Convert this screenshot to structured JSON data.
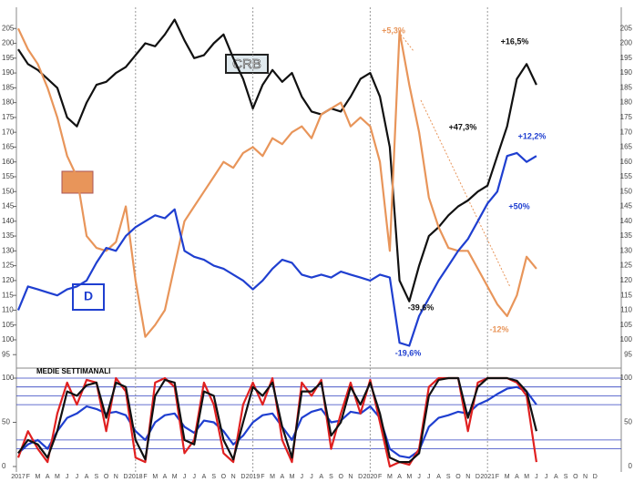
{
  "chart_data": [
    {
      "type": "line",
      "ylim": [
        92,
        210
      ],
      "yticks": [
        95,
        100,
        105,
        110,
        115,
        120,
        125,
        130,
        135,
        140,
        145,
        150,
        155,
        160,
        165,
        170,
        175,
        180,
        185,
        190,
        195,
        200,
        205
      ],
      "series": [
        {
          "name": "CRB",
          "color": "#111111",
          "values": [
            198,
            193,
            191,
            188,
            185,
            175,
            172,
            180,
            186,
            187,
            190,
            192,
            196,
            200,
            199,
            203,
            208,
            201,
            195,
            196,
            200,
            203,
            195,
            188,
            178,
            186,
            191,
            187,
            190,
            182,
            177,
            176,
            178,
            177,
            182,
            188,
            190,
            182,
            165,
            120,
            113,
            125,
            135,
            138,
            142,
            145,
            147,
            150,
            152,
            162,
            172,
            188,
            193,
            186,
            null,
            null,
            null,
            null,
            null,
            null
          ]
        },
        {
          "color": "#e8955a",
          "values": [
            205,
            198,
            193,
            185,
            175,
            162,
            155,
            135,
            131,
            130,
            133,
            145,
            120,
            101,
            105,
            110,
            125,
            140,
            145,
            150,
            155,
            160,
            158,
            163,
            165,
            162,
            168,
            166,
            170,
            172,
            168,
            176,
            178,
            180,
            172,
            175,
            172,
            160,
            130,
            204,
            186,
            170,
            148,
            138,
            131,
            130,
            130,
            124,
            118,
            112,
            108,
            115,
            128,
            124,
            null,
            null,
            null,
            null,
            null,
            null
          ]
        },
        {
          "color": "#1f3fd0",
          "values": [
            110,
            118,
            117,
            116,
            115,
            117,
            118,
            120,
            126,
            131,
            130,
            135,
            138,
            140,
            142,
            141,
            144,
            130,
            128,
            127,
            125,
            124,
            122,
            120,
            117,
            120,
            124,
            127,
            126,
            122,
            121,
            122,
            121,
            123,
            122,
            121,
            120,
            122,
            121,
            99,
            98,
            108,
            114,
            120,
            125,
            130,
            134,
            140,
            146,
            150,
            162,
            163,
            160,
            162,
            null,
            null,
            null,
            null,
            null,
            null
          ]
        }
      ],
      "annotations": [
        {
          "text": "+5,3%",
          "color": "#e8955a"
        },
        {
          "text": "+16,5%",
          "color": "#111111"
        },
        {
          "text": "+47,3%",
          "color": "#111111"
        },
        {
          "text": "+12,2%",
          "color": "#1f3fd0"
        },
        {
          "text": "+50%",
          "color": "#1f3fd0"
        },
        {
          "text": "-39,6%",
          "color": "#111111"
        },
        {
          "text": "-19,6%",
          "color": "#1f3fd0"
        },
        {
          "text": "-12%",
          "color": "#e8955a"
        },
        {
          "text": "D",
          "color": "#1f3fd0"
        }
      ]
    },
    {
      "type": "line",
      "title": "MEDIE SETTIMANALI",
      "categories": [
        "2017",
        "F",
        "M",
        "A",
        "M",
        "J",
        "J",
        "A",
        "S",
        "O",
        "N",
        "D",
        "2018",
        "F",
        "M",
        "A",
        "M",
        "J",
        "J",
        "A",
        "S",
        "O",
        "N",
        "D",
        "2019",
        "F",
        "M",
        "A",
        "M",
        "J",
        "J",
        "A",
        "S",
        "O",
        "N",
        "D",
        "2020",
        "F",
        "M",
        "A",
        "M",
        "J",
        "J",
        "A",
        "S",
        "O",
        "N",
        "D",
        "2021",
        "F",
        "M",
        "A",
        "M",
        "J",
        "J",
        "A",
        "S",
        "O",
        "N",
        "D"
      ],
      "ylim": [
        0,
        100
      ],
      "yticks": [
        0,
        50,
        100
      ],
      "levels": [
        20,
        30,
        70,
        80,
        90,
        100
      ],
      "series": [
        {
          "color": "#1f3fd0",
          "values": [
            15,
            25,
            30,
            20,
            40,
            55,
            60,
            68,
            65,
            60,
            62,
            58,
            40,
            30,
            50,
            58,
            60,
            45,
            38,
            52,
            50,
            40,
            25,
            35,
            50,
            58,
            60,
            45,
            30,
            55,
            62,
            65,
            50,
            52,
            62,
            60,
            68,
            55,
            20,
            12,
            10,
            18,
            45,
            55,
            58,
            62,
            60,
            70,
            75,
            82,
            88,
            90,
            85,
            70,
            null,
            null,
            null,
            null,
            null,
            null
          ]
        },
        {
          "color": "#e02020",
          "values": [
            10,
            40,
            20,
            5,
            60,
            95,
            70,
            98,
            95,
            40,
            100,
            85,
            10,
            5,
            95,
            100,
            90,
            15,
            30,
            95,
            70,
            15,
            5,
            70,
            95,
            70,
            100,
            30,
            5,
            95,
            80,
            98,
            20,
            60,
            95,
            60,
            98,
            50,
            0,
            5,
            2,
            20,
            90,
            100,
            100,
            100,
            40,
            95,
            100,
            100,
            100,
            95,
            80,
            5,
            null,
            null,
            null,
            null,
            null,
            null
          ]
        },
        {
          "color": "#111111",
          "values": [
            15,
            30,
            25,
            10,
            40,
            85,
            80,
            92,
            95,
            55,
            95,
            90,
            30,
            8,
            80,
            98,
            95,
            30,
            25,
            85,
            80,
            30,
            8,
            50,
            90,
            80,
            95,
            45,
            10,
            85,
            85,
            95,
            35,
            50,
            90,
            70,
            95,
            60,
            10,
            5,
            5,
            15,
            80,
            98,
            100,
            100,
            55,
            90,
            100,
            100,
            100,
            97,
            85,
            40,
            null,
            null,
            null,
            null,
            null,
            null
          ]
        }
      ]
    }
  ]
}
